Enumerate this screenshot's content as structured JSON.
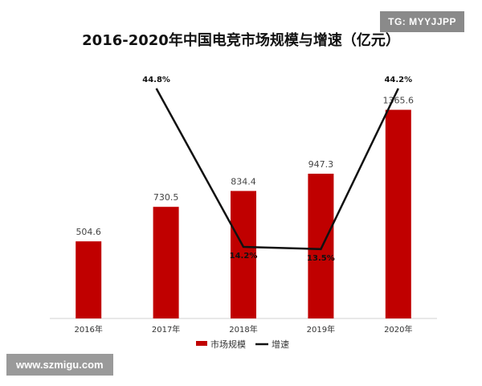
{
  "watermark_top": "TG: MYYJJPP",
  "watermark_bottom": "www.szmigu.com",
  "chart_data": {
    "type": "bar",
    "title": "2016-2020年中国电竞市场规模与增速（亿元）",
    "categories": [
      "2016年",
      "2017年",
      "2018年",
      "2019年",
      "2020年"
    ],
    "series": [
      {
        "name": "市场规模",
        "kind": "bar",
        "color": "#c00000",
        "values": [
          504.6,
          730.5,
          834.4,
          947.3,
          1365.6
        ],
        "labels": [
          "504.6",
          "730.5",
          "834.4",
          "947.3",
          "1365.6"
        ]
      },
      {
        "name": "增速",
        "kind": "line",
        "color": "#111111",
        "values": [
          null,
          44.8,
          14.2,
          13.5,
          44.2
        ],
        "labels": [
          "",
          "44.8%",
          "14.2%",
          "13.5%",
          "44.2%"
        ]
      }
    ],
    "legend_position": "bottom",
    "grid": false
  }
}
